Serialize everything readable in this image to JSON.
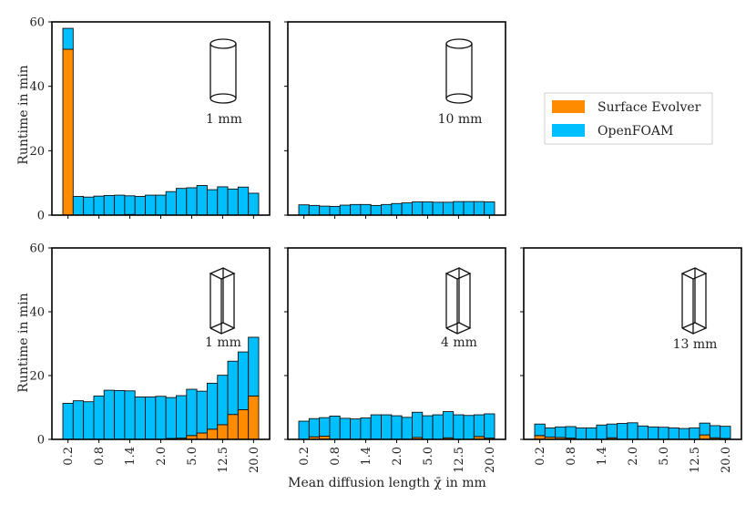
{
  "chart_data": {
    "type": "bar",
    "stacked": true,
    "xlabel": "Mean diffusion length χ̄ in mm",
    "ylabel": "Runtime in min",
    "ylim": [
      0,
      60
    ],
    "yticks": [
      "0",
      "20",
      "40",
      "60"
    ],
    "xtick_labels": [
      "0.2",
      "0.8",
      "1.4",
      "2.0",
      "5.0",
      "12.5",
      "20.0"
    ],
    "xtick_bins": [
      0,
      3,
      6,
      9,
      12,
      15,
      18
    ],
    "colors": {
      "surface_evolver": "#ff8c00",
      "openfoam": "#00bfff"
    },
    "legend": [
      {
        "name": "Surface Evolver",
        "color": "#ff8c00"
      },
      {
        "name": "OpenFOAM",
        "color": "#00bfff"
      }
    ],
    "legend_position": "right",
    "panels": [
      {
        "shape": "cylinder",
        "size_label": "1 mm",
        "series": [
          {
            "name": "Surface Evolver",
            "values": [
              51.5,
              0,
              0,
              0,
              0,
              0,
              0.2,
              0,
              0,
              0,
              0,
              0,
              0,
              0,
              0,
              0,
              0,
              0,
              0
            ]
          },
          {
            "name": "OpenFOAM",
            "values": [
              6.5,
              5.8,
              5.6,
              5.9,
              6.1,
              6.2,
              5.8,
              5.8,
              6.2,
              6.2,
              7.3,
              8.3,
              8.5,
              9.2,
              7.9,
              8.8,
              8.1,
              8.7,
              6.8
            ]
          }
        ]
      },
      {
        "shape": "cylinder",
        "size_label": "10 mm",
        "series": [
          {
            "name": "Surface Evolver",
            "values": [
              0,
              0,
              0,
              0,
              0,
              0,
              0,
              0,
              0,
              0,
              0,
              0,
              0,
              0,
              0,
              0,
              0,
              0,
              0
            ]
          },
          {
            "name": "OpenFOAM",
            "values": [
              3.2,
              3.0,
              2.8,
              2.7,
              3.1,
              3.3,
              3.3,
              3.0,
              3.3,
              3.6,
              3.8,
              4.1,
              4.1,
              4.0,
              4.0,
              4.2,
              4.2,
              4.2,
              4.1
            ]
          }
        ]
      },
      {
        "shape": "prism",
        "size_label": "1 mm",
        "series": [
          {
            "name": "Surface Evolver",
            "values": [
              0,
              0,
              0,
              0,
              0,
              0,
              0,
              0,
              0,
              0,
              0.3,
              0.4,
              1.2,
              2.0,
              3.2,
              4.6,
              7.8,
              9.3,
              13.6
            ]
          },
          {
            "name": "OpenFOAM",
            "values": [
              11.3,
              12.1,
              11.8,
              13.6,
              15.4,
              15.3,
              15.2,
              13.3,
              13.3,
              13.5,
              12.8,
              13.3,
              14.5,
              13.1,
              14.4,
              15.5,
              16.7,
              18.1,
              18.4
            ]
          }
        ]
      },
      {
        "shape": "prism",
        "size_label": "4 mm",
        "series": [
          {
            "name": "Surface Evolver",
            "values": [
              0,
              0.8,
              1.0,
              0,
              0,
              0,
              0,
              0,
              0,
              0,
              0,
              0.6,
              0,
              0,
              0.5,
              0,
              0,
              0.9,
              0.4
            ]
          },
          {
            "name": "OpenFOAM",
            "values": [
              5.7,
              5.7,
              5.8,
              7.3,
              6.6,
              6.4,
              6.7,
              7.7,
              7.7,
              7.4,
              6.9,
              7.9,
              7.4,
              7.7,
              8.2,
              7.7,
              7.5,
              6.8,
              7.6
            ]
          }
        ]
      },
      {
        "shape": "prism",
        "size_label": "13 mm",
        "series": [
          {
            "name": "Surface Evolver",
            "values": [
              1.2,
              0.7,
              0.6,
              0.4,
              0,
              0,
              0,
              0.5,
              0,
              0,
              0,
              0,
              0,
              0,
              0,
              0,
              1.4,
              0.5,
              0.3
            ]
          },
          {
            "name": "OpenFOAM",
            "values": [
              3.6,
              2.9,
              3.3,
              3.6,
              3.6,
              3.6,
              4.5,
              4.3,
              5.0,
              5.2,
              4.2,
              3.9,
              3.8,
              3.6,
              3.4,
              3.6,
              3.7,
              3.8,
              3.8
            ]
          }
        ]
      }
    ]
  }
}
